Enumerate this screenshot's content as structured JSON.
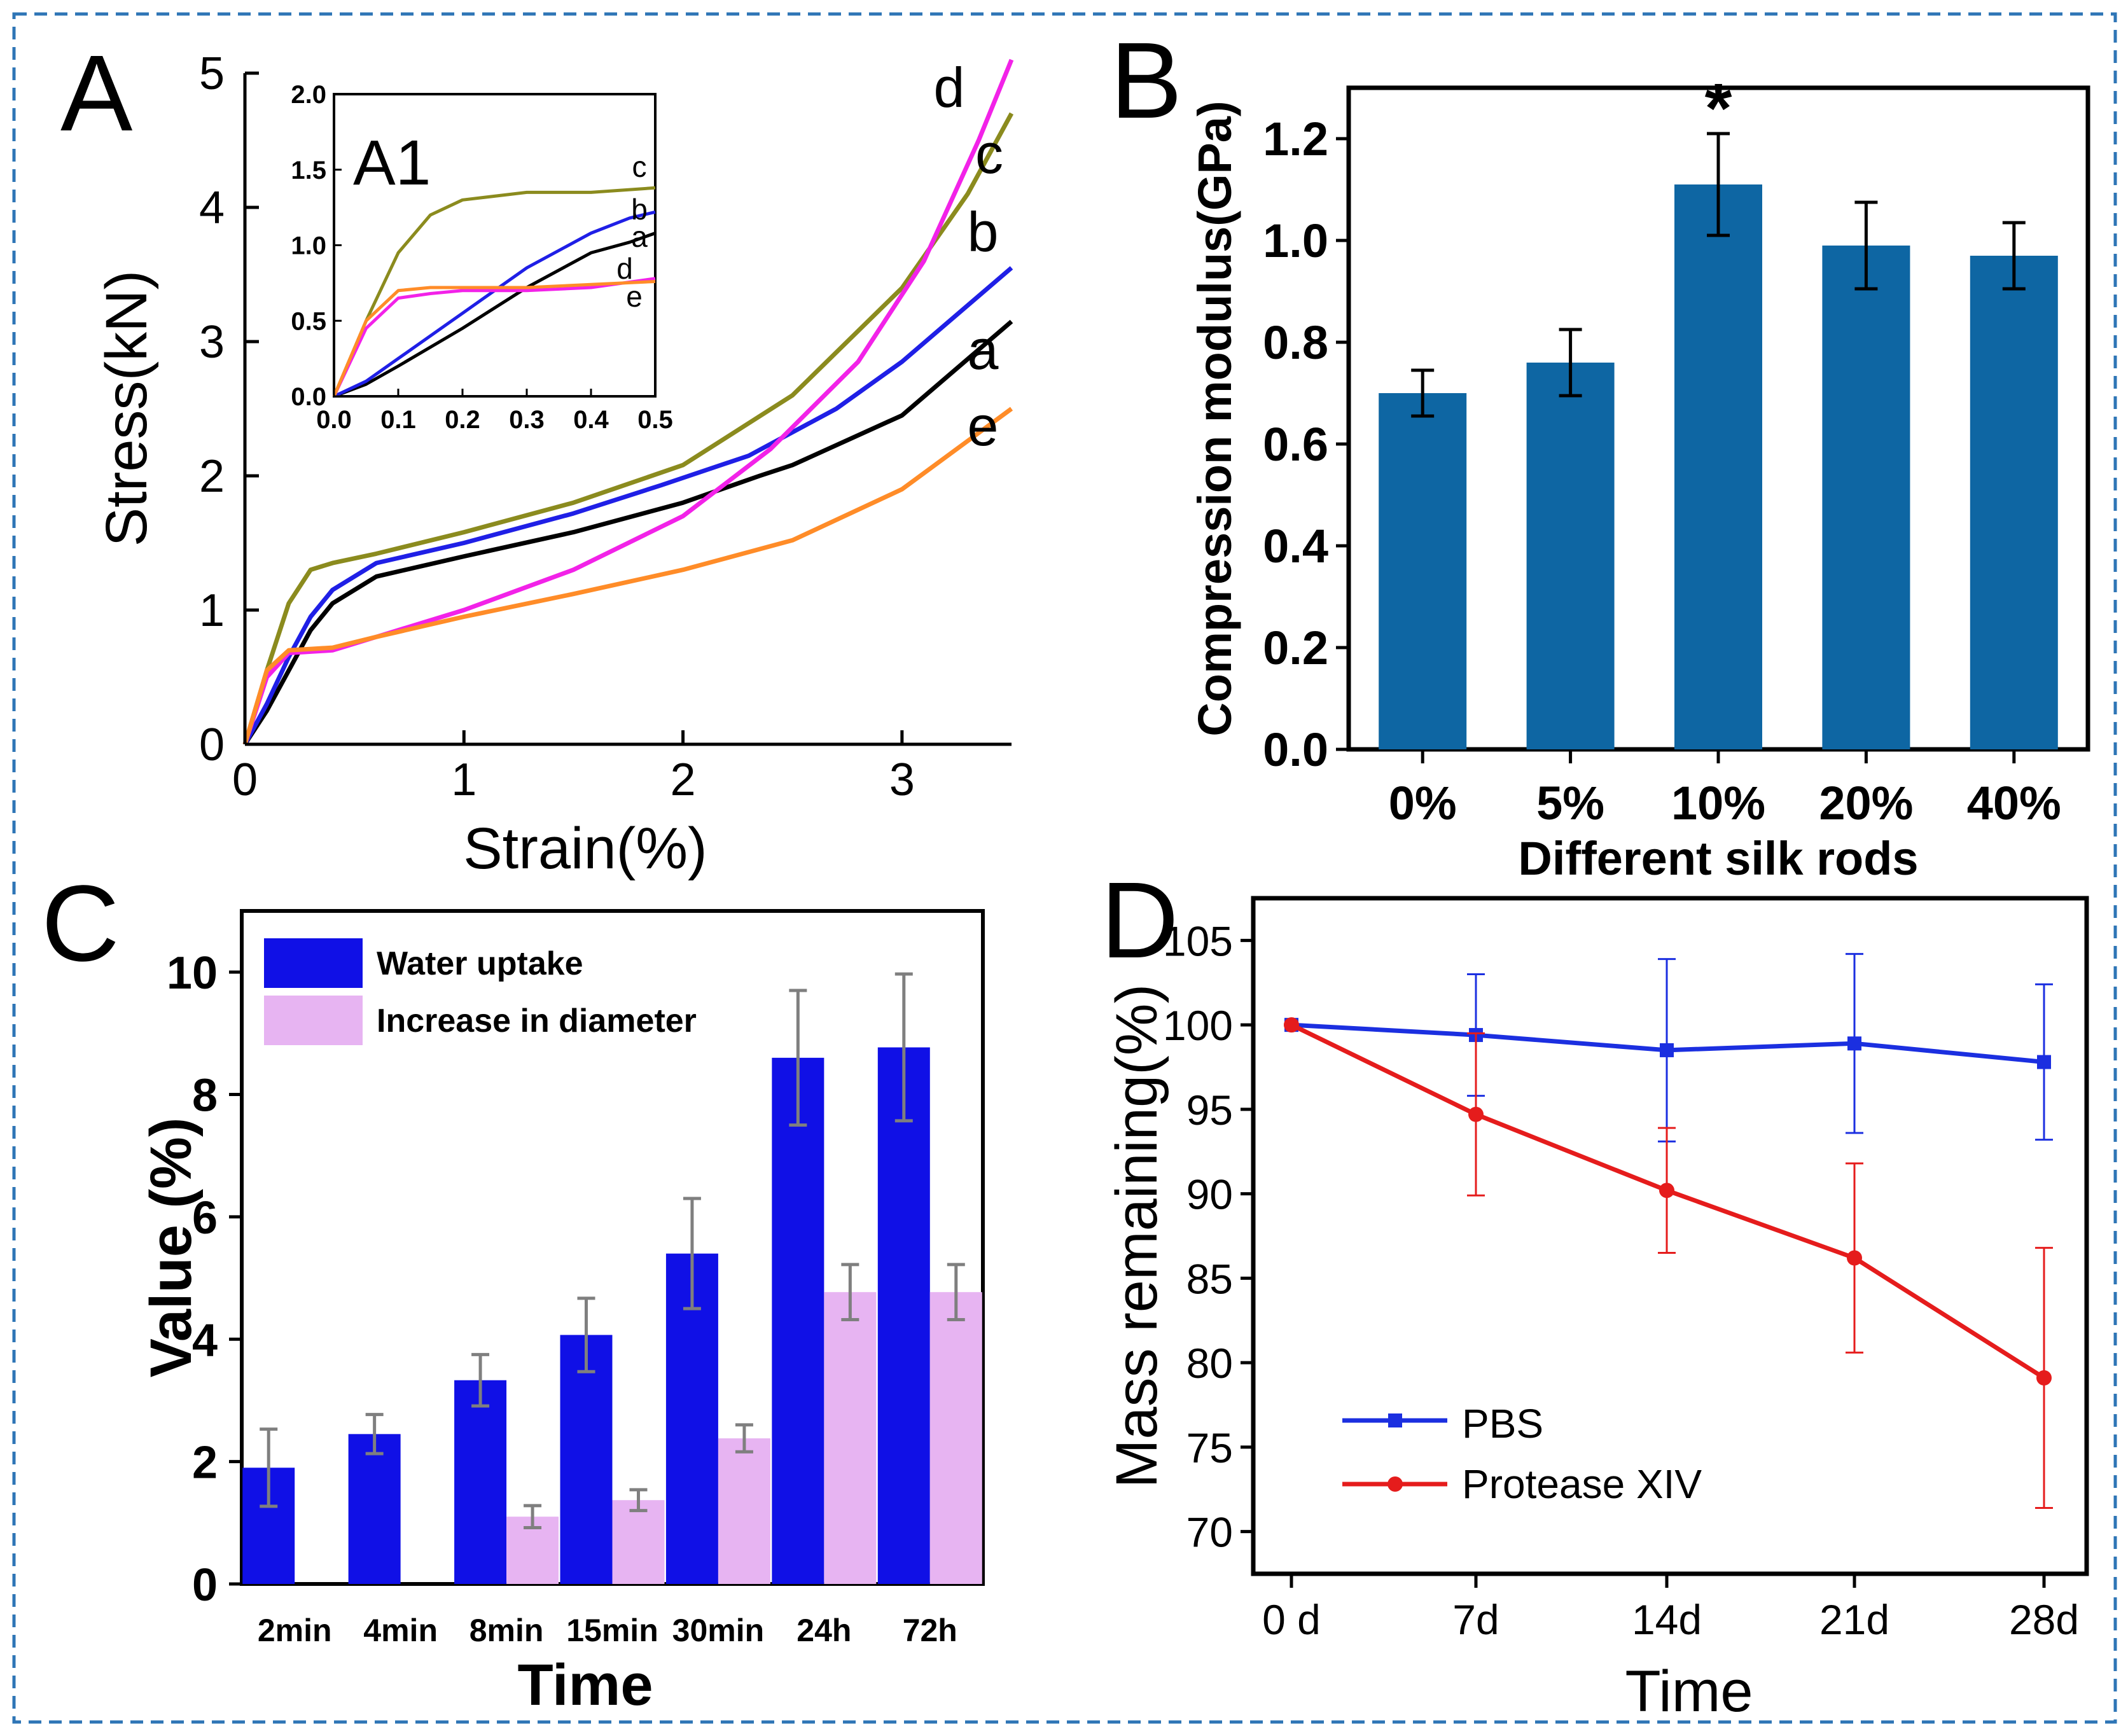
{
  "colors": {
    "frame": "#2E75B6",
    "axis": "#000000",
    "a": "#000000",
    "b": "#1F1FE6",
    "c": "#8B8B1E",
    "d": "#F222E8",
    "e": "#FF8C28",
    "barB": "#0E66A3",
    "waterUptake": "#1010E6",
    "diameter": "#E7B4F2",
    "errC": "#7F7F7F",
    "pbs": "#1B2FE0",
    "protease": "#E51C1C"
  },
  "panels": {
    "A": {
      "label": "A",
      "chart_data": {
        "type": "line",
        "xlabel": "Strain(%)",
        "ylabel": "Stress(kN)",
        "xlim": [
          0,
          3.5
        ],
        "ylim": [
          0,
          5
        ],
        "xticks": [
          "0",
          "1",
          "2",
          "3"
        ],
        "yticks": [
          "0",
          "1",
          "2",
          "3",
          "4",
          "5"
        ],
        "series": [
          {
            "name": "a",
            "x": [
              0,
              0.1,
              0.2,
              0.3,
              0.4,
              0.6,
              1.0,
              1.5,
              2.0,
              2.35,
              2.5,
              3.0,
              3.5
            ],
            "y": [
              0,
              0.25,
              0.55,
              0.85,
              1.05,
              1.25,
              1.4,
              1.58,
              1.8,
              2.0,
              2.08,
              2.45,
              3.15
            ]
          },
          {
            "name": "b",
            "x": [
              0,
              0.1,
              0.2,
              0.3,
              0.4,
              0.6,
              1.0,
              1.5,
              1.9,
              2.3,
              2.7,
              3.0,
              3.5
            ],
            "y": [
              0,
              0.3,
              0.65,
              0.95,
              1.15,
              1.35,
              1.5,
              1.72,
              1.93,
              2.15,
              2.5,
              2.85,
              3.55
            ]
          },
          {
            "name": "c",
            "x": [
              0,
              0.1,
              0.2,
              0.3,
              0.4,
              0.6,
              1.0,
              1.5,
              2.0,
              2.5,
              3.0,
              3.3,
              3.5
            ],
            "y": [
              0,
              0.55,
              1.05,
              1.3,
              1.35,
              1.42,
              1.58,
              1.8,
              2.08,
              2.6,
              3.4,
              4.1,
              4.7
            ]
          },
          {
            "name": "d",
            "x": [
              0,
              0.1,
              0.2,
              0.4,
              0.6,
              1.0,
              1.5,
              2.0,
              2.4,
              2.8,
              3.1,
              3.35,
              3.5
            ],
            "y": [
              0,
              0.5,
              0.68,
              0.7,
              0.8,
              1.0,
              1.3,
              1.7,
              2.2,
              2.85,
              3.6,
              4.5,
              5.1
            ]
          },
          {
            "name": "e",
            "x": [
              0,
              0.1,
              0.2,
              0.4,
              0.6,
              1.0,
              1.5,
              2.0,
              2.5,
              3.0,
              3.5
            ],
            "y": [
              0,
              0.55,
              0.7,
              0.72,
              0.8,
              0.95,
              1.12,
              1.3,
              1.52,
              1.9,
              2.5
            ]
          }
        ],
        "curve_labels": [
          "a",
          "b",
          "c",
          "d",
          "e"
        ],
        "inset": {
          "label": "A1",
          "xlim": [
            0,
            0.5
          ],
          "ylim": [
            0,
            2
          ],
          "xticks": [
            "0.0",
            "0.1",
            "0.2",
            "0.3",
            "0.4",
            "0.5"
          ],
          "yticks": [
            "0.0",
            "0.5",
            "1.0",
            "1.5",
            "2.0"
          ],
          "series": [
            {
              "name": "a",
              "x": [
                0,
                0.05,
                0.1,
                0.2,
                0.3,
                0.4,
                0.46,
                0.5
              ],
              "y": [
                0,
                0.08,
                0.2,
                0.45,
                0.72,
                0.95,
                1.02,
                1.08
              ]
            },
            {
              "name": "b",
              "x": [
                0,
                0.05,
                0.1,
                0.2,
                0.3,
                0.4,
                0.46,
                0.5
              ],
              "y": [
                0,
                0.1,
                0.25,
                0.55,
                0.85,
                1.08,
                1.18,
                1.22
              ]
            },
            {
              "name": "c",
              "x": [
                0,
                0.05,
                0.1,
                0.15,
                0.2,
                0.3,
                0.4,
                0.5
              ],
              "y": [
                0,
                0.5,
                0.95,
                1.2,
                1.3,
                1.35,
                1.35,
                1.38
              ]
            },
            {
              "name": "d",
              "x": [
                0,
                0.05,
                0.1,
                0.15,
                0.2,
                0.3,
                0.4,
                0.5
              ],
              "y": [
                0,
                0.45,
                0.65,
                0.68,
                0.7,
                0.7,
                0.72,
                0.78
              ]
            },
            {
              "name": "e",
              "x": [
                0,
                0.05,
                0.1,
                0.15,
                0.2,
                0.3,
                0.4,
                0.5
              ],
              "y": [
                0,
                0.5,
                0.7,
                0.72,
                0.72,
                0.72,
                0.74,
                0.76
              ]
            }
          ],
          "curve_labels": [
            "c",
            "b",
            "a",
            "d",
            "e"
          ]
        }
      }
    },
    "B": {
      "label": "B",
      "chart_data": {
        "type": "bar",
        "xlabel": "Different silk rods",
        "ylabel": "Compression modulus(GPa)",
        "ylim": [
          0,
          1.3
        ],
        "yticks": [
          "0.0",
          "0.2",
          "0.4",
          "0.6",
          "0.8",
          "1.0",
          "1.2"
        ],
        "categories": [
          "0%",
          "5%",
          "10%",
          "20%",
          "40%"
        ],
        "values": [
          0.7,
          0.76,
          1.11,
          0.99,
          0.97
        ],
        "errors": [
          0.045,
          0.065,
          0.1,
          0.085,
          0.065
        ],
        "significance": {
          "category": "10%",
          "marker": "*"
        }
      }
    },
    "C": {
      "label": "C",
      "chart_data": {
        "type": "bar",
        "xlabel": "Time",
        "ylabel": "Value (%)",
        "ylim": [
          0,
          11
        ],
        "yticks": [
          "0",
          "2",
          "4",
          "6",
          "8",
          "10"
        ],
        "categories": [
          "2min",
          "4min",
          "8min",
          "15min",
          "30min",
          "24h",
          "72h"
        ],
        "series": [
          {
            "name": "Water uptake",
            "values": [
              1.9,
              2.45,
              3.33,
              4.07,
              5.4,
              8.6,
              8.77
            ],
            "errors": [
              0.63,
              0.32,
              0.42,
              0.6,
              0.9,
              1.1,
              1.2
            ]
          },
          {
            "name": "Increase in diameter",
            "values": [
              null,
              null,
              1.1,
              1.37,
              2.38,
              4.77,
              4.77
            ],
            "errors": [
              null,
              null,
              0.18,
              0.17,
              0.22,
              0.45,
              0.45
            ]
          }
        ]
      }
    },
    "D": {
      "label": "D",
      "chart_data": {
        "type": "line",
        "xlabel": "Time",
        "ylabel": "Mass remaining(%)",
        "ylim": [
          67.5,
          107.5
        ],
        "yticks": [
          "70",
          "75",
          "80",
          "85",
          "90",
          "95",
          "100",
          "105"
        ],
        "categories": [
          "0 d",
          "7d",
          "14d",
          "21d",
          "28d"
        ],
        "series": [
          {
            "name": "PBS",
            "values": [
              100,
              99.4,
              98.5,
              98.9,
              97.8
            ],
            "errors": [
              0,
              3.6,
              5.4,
              5.3,
              4.6
            ]
          },
          {
            "name": "Protease XIV",
            "values": [
              100,
              94.7,
              90.2,
              86.2,
              79.1
            ],
            "errors": [
              0,
              4.8,
              3.7,
              5.6,
              7.7
            ]
          }
        ]
      }
    }
  }
}
